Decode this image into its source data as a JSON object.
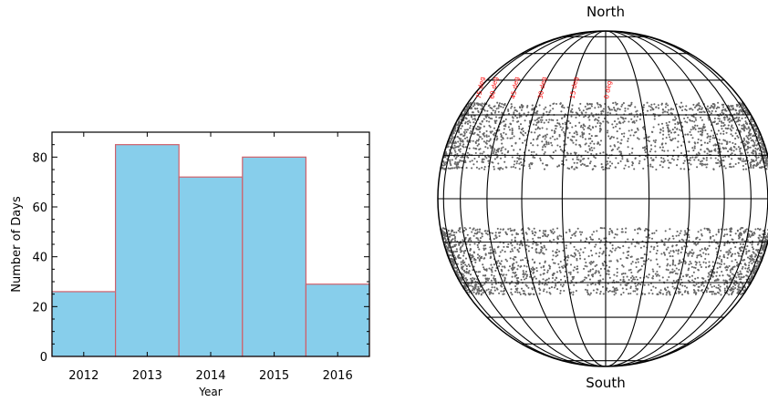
{
  "chart_data": [
    {
      "type": "bar",
      "xlabel": "Year",
      "ylabel": "Number of Days",
      "categories": [
        "2012",
        "2013",
        "2014",
        "2015",
        "2016"
      ],
      "values": [
        26,
        85,
        72,
        80,
        29
      ],
      "ylim": [
        0,
        90
      ],
      "yticks": [
        "0",
        "20",
        "40",
        "60",
        "80"
      ],
      "bar_fill": "#87ceeb",
      "bar_edge": "#d0606a",
      "grid": false
    },
    {
      "type": "scatter",
      "subtype": "solar-disk-grid",
      "top_label": "North",
      "bottom_label": "South",
      "longitude_labels": [
        "75 deg",
        "60 deg",
        "45 deg",
        "30 deg",
        "15 deg",
        "0 deg"
      ],
      "label_color": "#ff0000",
      "point_color": "#666666",
      "grid_step_deg": 15,
      "point_bands_latitude_deg": [
        [
          10,
          35
        ],
        [
          -35,
          -10
        ]
      ]
    }
  ]
}
